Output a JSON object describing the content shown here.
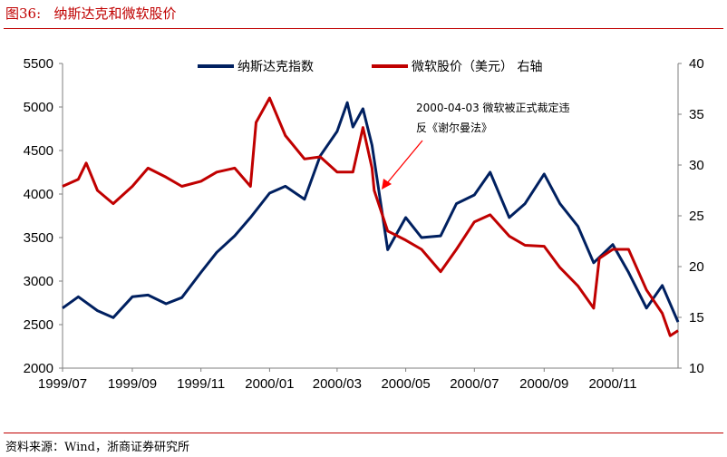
{
  "header": {
    "title": "图36:   纳斯达克和微软股价"
  },
  "footer": {
    "source": "资料来源：Wind，浙商证券研究所"
  },
  "chart_data": {
    "type": "line",
    "title": "",
    "xlabel": "",
    "ylabel": "",
    "y2label": "",
    "x_ticks": [
      "1999/07",
      "1999/09",
      "1999/11",
      "2000/01",
      "2000/03",
      "2000/05",
      "2000/07",
      "2000/09",
      "2000/11"
    ],
    "xlim": [
      "1999-07-01",
      "2000-12-29"
    ],
    "ylim": [
      2000,
      5500
    ],
    "y_ticks": [
      2000,
      2500,
      3000,
      3500,
      4000,
      4500,
      5000,
      5500
    ],
    "y2lim": [
      10,
      40
    ],
    "y2_ticks": [
      10,
      15,
      20,
      25,
      30,
      35,
      40
    ],
    "grid": false,
    "legend": "top",
    "series": [
      {
        "name": "纳斯达克指数",
        "axis": "left",
        "color": "#002060",
        "x": [
          "1999-07-01",
          "1999-07-15",
          "1999-08-01",
          "1999-08-15",
          "1999-09-01",
          "1999-09-15",
          "1999-10-01",
          "1999-10-15",
          "1999-11-01",
          "1999-11-15",
          "1999-12-01",
          "1999-12-15",
          "2000-01-01",
          "2000-01-15",
          "2000-02-01",
          "2000-02-15",
          "2000-03-01",
          "2000-03-10",
          "2000-03-15",
          "2000-03-24",
          "2000-04-01",
          "2000-04-15",
          "2000-05-01",
          "2000-05-15",
          "2000-06-01",
          "2000-06-15",
          "2000-07-01",
          "2000-07-15",
          "2000-08-01",
          "2000-08-15",
          "2000-09-01",
          "2000-09-15",
          "2000-10-01",
          "2000-10-15",
          "2000-11-01",
          "2000-11-15",
          "2000-12-01",
          "2000-12-15",
          "2000-12-29"
        ],
        "values": [
          2690,
          2820,
          2660,
          2580,
          2820,
          2840,
          2740,
          2810,
          3100,
          3330,
          3520,
          3730,
          4010,
          4090,
          3940,
          4440,
          4720,
          5050,
          4770,
          4980,
          4560,
          3360,
          3730,
          3500,
          3520,
          3890,
          3990,
          4250,
          3730,
          3890,
          4230,
          3890,
          3630,
          3210,
          3420,
          3100,
          2690,
          2950,
          2530
        ]
      },
      {
        "name": "微软股价（美元） 右轴",
        "axis": "right",
        "color": "#c00000",
        "x": [
          "1999-07-01",
          "1999-07-15",
          "1999-07-22",
          "1999-08-01",
          "1999-08-15",
          "1999-09-01",
          "1999-09-15",
          "1999-10-01",
          "1999-10-15",
          "1999-11-01",
          "1999-11-15",
          "1999-12-01",
          "1999-12-15",
          "1999-12-20",
          "2000-01-01",
          "2000-01-15",
          "2000-02-01",
          "2000-02-15",
          "2000-03-01",
          "2000-03-15",
          "2000-03-24",
          "2000-04-01",
          "2000-04-03",
          "2000-04-15",
          "2000-05-01",
          "2000-05-15",
          "2000-06-01",
          "2000-06-15",
          "2000-07-01",
          "2000-07-15",
          "2000-08-01",
          "2000-08-15",
          "2000-09-01",
          "2000-09-15",
          "2000-10-01",
          "2000-10-15",
          "2000-10-20",
          "2000-11-01",
          "2000-11-15",
          "2000-12-01",
          "2000-12-15",
          "2000-12-22",
          "2000-12-29"
        ],
        "values": [
          27.9,
          28.6,
          30.2,
          27.5,
          26.2,
          27.9,
          29.7,
          28.8,
          27.9,
          28.4,
          29.3,
          29.7,
          27.9,
          34.2,
          36.6,
          32.9,
          30.6,
          30.8,
          29.3,
          29.3,
          33.7,
          29.7,
          27.5,
          23.5,
          22.6,
          21.7,
          19.5,
          21.7,
          24.4,
          25.1,
          23.0,
          22.1,
          22.0,
          19.9,
          18.1,
          15.9,
          20.8,
          21.7,
          21.7,
          17.7,
          15.4,
          13.2,
          13.7
        ]
      }
    ],
    "annotation": {
      "line1": "2000-04-03 微软被正式裁定违",
      "line2": "反《谢尔曼法》",
      "date": "2000-04-03"
    }
  }
}
